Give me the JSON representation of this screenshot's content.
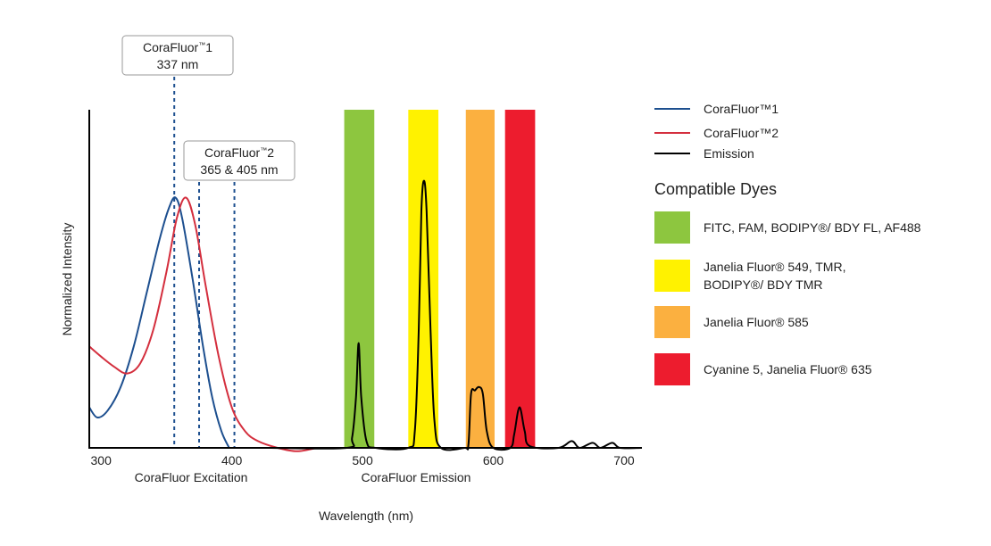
{
  "chart_data": {
    "type": "line",
    "ylabel": "Normalized Intensity",
    "xlabel": "Wavelength (nm)",
    "x_group_labels": [
      "CoraFluor Excitation",
      "CoraFluor Emission"
    ],
    "xlim": [
      291,
      713
    ],
    "ylim": [
      0,
      1
    ],
    "x_ticks": [
      300,
      400,
      500,
      600,
      700
    ],
    "grid": false,
    "legend_position": "right",
    "series": [
      {
        "name": "CoraFluor™1",
        "color": "#1d4f8f",
        "points": [
          [
            291,
            0.12
          ],
          [
            297,
            0.09
          ],
          [
            305,
            0.11
          ],
          [
            315,
            0.18
          ],
          [
            325,
            0.3
          ],
          [
            335,
            0.46
          ],
          [
            345,
            0.62
          ],
          [
            352,
            0.71
          ],
          [
            357,
            0.74
          ],
          [
            362,
            0.68
          ],
          [
            370,
            0.5
          ],
          [
            378,
            0.3
          ],
          [
            385,
            0.15
          ],
          [
            392,
            0.05
          ],
          [
            398,
            0
          ]
        ]
      },
      {
        "name": "CoraFluor™2",
        "color": "#d42f3e",
        "points": [
          [
            291,
            0.3
          ],
          [
            300,
            0.27
          ],
          [
            310,
            0.24
          ],
          [
            320,
            0.22
          ],
          [
            330,
            0.25
          ],
          [
            340,
            0.35
          ],
          [
            350,
            0.52
          ],
          [
            358,
            0.68
          ],
          [
            365,
            0.74
          ],
          [
            372,
            0.66
          ],
          [
            380,
            0.48
          ],
          [
            390,
            0.27
          ],
          [
            400,
            0.12
          ],
          [
            410,
            0.05
          ],
          [
            420,
            0.02
          ],
          [
            435,
            0.0
          ],
          [
            450,
            -0.01
          ],
          [
            465,
            0
          ]
        ]
      },
      {
        "name": "Emission",
        "color": "#000000",
        "points": [
          [
            430,
            0
          ],
          [
            488,
            0
          ],
          [
            492,
            0.03
          ],
          [
            495,
            0.15
          ],
          [
            497,
            0.31
          ],
          [
            499,
            0.15
          ],
          [
            503,
            0.02
          ],
          [
            510,
            0
          ],
          [
            535,
            0
          ],
          [
            540,
            0.05
          ],
          [
            543,
            0.35
          ],
          [
            545,
            0.7
          ],
          [
            547,
            0.79
          ],
          [
            549,
            0.7
          ],
          [
            552,
            0.35
          ],
          [
            555,
            0.08
          ],
          [
            560,
            0
          ],
          [
            578,
            0
          ],
          [
            581,
            0.01
          ],
          [
            583,
            0.16
          ],
          [
            586,
            0.17
          ],
          [
            589,
            0.18
          ],
          [
            592,
            0.16
          ],
          [
            595,
            0.05
          ],
          [
            600,
            0
          ],
          [
            613,
            0
          ],
          [
            616,
            0.04
          ],
          [
            620,
            0.12
          ],
          [
            624,
            0.05
          ],
          [
            628,
            0.005
          ],
          [
            650,
            0
          ],
          [
            660,
            0.02
          ],
          [
            666,
            0
          ],
          [
            676,
            0.015
          ],
          [
            682,
            0
          ],
          [
            691,
            0.015
          ],
          [
            697,
            0
          ],
          [
            713,
            0
          ]
        ]
      }
    ],
    "marker_lines_nm": [
      356,
      375,
      402
    ],
    "annotations": [
      {
        "line1": "CoraFluor",
        "tm": "™",
        "suffix": "1",
        "line2": "337 nm"
      },
      {
        "line1": "CoraFluor",
        "tm": "™",
        "suffix": "2",
        "line2": "365 & 405 nm"
      }
    ],
    "bands": [
      {
        "range": [
          486,
          509
        ],
        "color": "#8dc63f",
        "label": "FITC, FAM, BODIPY®/ BDY FL, AF488"
      },
      {
        "range": [
          535,
          558
        ],
        "color": "#fff200",
        "label": "Janelia Fluor® 549, TMR,",
        "label2": "BODIPY®/ BDY TMR"
      },
      {
        "range": [
          579,
          601
        ],
        "color": "#fbb040",
        "label": "Janelia Fluor® 585"
      },
      {
        "range": [
          609,
          632
        ],
        "color": "#ed1c2e",
        "label": "Cyanine 5, Janelia Fluor® 635"
      }
    ],
    "dyes_title": "Compatible Dyes"
  }
}
